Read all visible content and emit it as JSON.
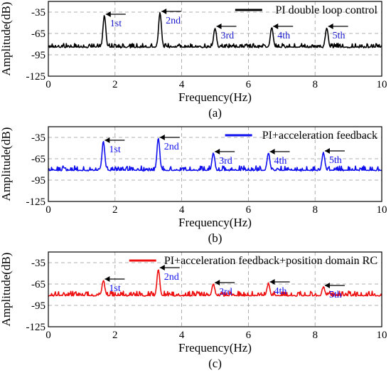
{
  "chart_data": [
    {
      "type": "line",
      "panel_label": "(a)",
      "xlabel": "Frequency(Hz)",
      "ylabel": "Amplitude(dB)",
      "xlim": [
        0,
        10
      ],
      "ylim": [
        -125,
        -20
      ],
      "xticks": [
        "0",
        "2",
        "4",
        "6",
        "8",
        "10"
      ],
      "yticks": [
        "-35",
        "-65",
        "-95",
        "-125"
      ],
      "grid": true,
      "legend_position": "top-right",
      "color": "#000000",
      "label_color": "#1a1acc",
      "series": [
        {
          "name": "PI double loop control",
          "baseline": -85,
          "noise": 6,
          "seed": 11
        }
      ],
      "peaks": [
        {
          "label": "1st",
          "x": 1.68,
          "y": -40
        },
        {
          "label": "2nd",
          "x": 3.35,
          "y": -36
        },
        {
          "label": "3rd",
          "x": 5.0,
          "y": -57
        },
        {
          "label": "4th",
          "x": 6.7,
          "y": -57
        },
        {
          "label": "5th",
          "x": 8.35,
          "y": -57
        }
      ]
    },
    {
      "type": "line",
      "panel_label": "(b)",
      "xlabel": "Frequency(Hz)",
      "ylabel": "Amplitude(dB)",
      "xlim": [
        0,
        10
      ],
      "ylim": [
        -125,
        -20
      ],
      "xticks": [
        "0",
        "2",
        "4",
        "6",
        "8",
        "10"
      ],
      "yticks": [
        "-35",
        "-65",
        "-95",
        "-125"
      ],
      "grid": true,
      "legend_position": "top-right",
      "color": "#1010ee",
      "label_color": "#1010ee",
      "series": [
        {
          "name": "PI+acceleration feedback",
          "baseline": -82,
          "noise": 7,
          "seed": 23
        }
      ],
      "peaks": [
        {
          "label": "1st",
          "x": 1.65,
          "y": -41
        },
        {
          "label": "2nd",
          "x": 3.3,
          "y": -37
        },
        {
          "label": "3rd",
          "x": 4.95,
          "y": -57
        },
        {
          "label": "4th",
          "x": 6.6,
          "y": -57
        },
        {
          "label": "5th",
          "x": 8.25,
          "y": -56
        }
      ]
    },
    {
      "type": "line",
      "panel_label": "(c)",
      "xlabel": "Frequency(Hz)",
      "ylabel": "Amplitude(dB)",
      "xlim": [
        0,
        10
      ],
      "ylim": [
        -125,
        -20
      ],
      "xticks": [
        "0",
        "2",
        "4",
        "6",
        "8",
        "10"
      ],
      "yticks": [
        "-35",
        "-65",
        "-95",
        "-125"
      ],
      "grid": true,
      "legend_position": "top-right",
      "color": "#ee1010",
      "label_color": "#1010ee",
      "series": [
        {
          "name": "PI+acceleration feedback+position domain RC",
          "baseline": -82,
          "noise": 7,
          "seed": 37
        }
      ],
      "peaks": [
        {
          "label": "1st",
          "x": 1.65,
          "y": -60
        },
        {
          "label": "2nd",
          "x": 3.3,
          "y": -44
        },
        {
          "label": "3rd",
          "x": 4.95,
          "y": -65
        },
        {
          "label": "4th",
          "x": 6.6,
          "y": -64
        },
        {
          "label": "5th",
          "x": 8.25,
          "y": -69
        }
      ]
    }
  ]
}
